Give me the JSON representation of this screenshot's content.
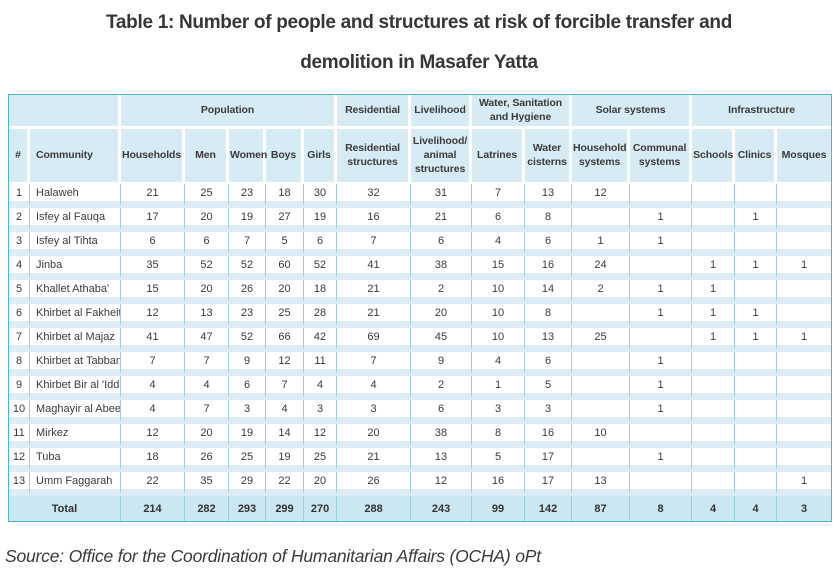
{
  "title": {
    "line1": "Table 1: Number of people and structures at risk of forcible transfer and",
    "line2": "demolition in Masafer Yatta"
  },
  "source": "Source: Office for the Coordination of Humanitarian Affairs (OCHA) oPt",
  "colors": {
    "table_border": "#4cb5cb",
    "header_bg": "#d6ebf4",
    "row_band": "#dcedf6",
    "total_row_bg": "#cbe7f2",
    "grid_line": "#9ccbdc",
    "text": "#3b3b3b"
  },
  "table": {
    "group_headers": [
      {
        "label": "",
        "colspan": 2
      },
      {
        "label": "Population",
        "colspan": 5
      },
      {
        "label": "Residential",
        "colspan": 1
      },
      {
        "label": "Livelihood",
        "colspan": 1
      },
      {
        "label": "Water, Sanitation and Hygiene",
        "colspan": 2
      },
      {
        "label": "Solar systems",
        "colspan": 2
      },
      {
        "label": "Infrastructure",
        "colspan": 3
      }
    ],
    "columns": [
      "#",
      "Community",
      "Households",
      "Men",
      "Women",
      "Boys",
      "Girls",
      "Residential structures",
      "Livelihood/ animal structures",
      "Latrines",
      "Water cisterns",
      "Household systems",
      "Communal systems",
      "Schools",
      "Clinics",
      "Mosques"
    ],
    "rows": [
      {
        "num": "1",
        "community": "Halaweh",
        "values": [
          "21",
          "25",
          "23",
          "18",
          "30",
          "32",
          "31",
          "7",
          "13",
          "12",
          "",
          "",
          "",
          ""
        ]
      },
      {
        "num": "2",
        "community": "Isfey al Fauqa",
        "values": [
          "17",
          "20",
          "19",
          "27",
          "19",
          "16",
          "21",
          "6",
          "8",
          "",
          "1",
          "",
          "1",
          ""
        ]
      },
      {
        "num": "3",
        "community": "Isfey al Tihta",
        "values": [
          "6",
          "6",
          "7",
          "5",
          "6",
          "7",
          "6",
          "4",
          "6",
          "1",
          "1",
          "",
          "",
          ""
        ]
      },
      {
        "num": "4",
        "community": "Jinba",
        "values": [
          "35",
          "52",
          "52",
          "60",
          "52",
          "41",
          "38",
          "15",
          "16",
          "24",
          "",
          "1",
          "1",
          "1"
        ]
      },
      {
        "num": "5",
        "community": "Khallet Athaba'",
        "values": [
          "15",
          "20",
          "26",
          "20",
          "18",
          "21",
          "2",
          "10",
          "14",
          "2",
          "1",
          "1",
          "",
          ""
        ]
      },
      {
        "num": "6",
        "community": "Khirbet al Fakheit",
        "values": [
          "12",
          "13",
          "23",
          "25",
          "28",
          "21",
          "20",
          "10",
          "8",
          "",
          "1",
          "1",
          "1",
          ""
        ]
      },
      {
        "num": "7",
        "community": "Khirbet al Majaz",
        "values": [
          "41",
          "47",
          "52",
          "66",
          "42",
          "69",
          "45",
          "10",
          "13",
          "25",
          "",
          "1",
          "1",
          "1"
        ]
      },
      {
        "num": "8",
        "community": "Khirbet at Tabban",
        "values": [
          "7",
          "7",
          "9",
          "12",
          "11",
          "7",
          "9",
          "4",
          "6",
          "",
          "1",
          "",
          "",
          ""
        ]
      },
      {
        "num": "9",
        "community": "Khirbet Bir al 'Idd",
        "values": [
          "4",
          "4",
          "6",
          "7",
          "4",
          "4",
          "2",
          "1",
          "5",
          "",
          "1",
          "",
          "",
          ""
        ]
      },
      {
        "num": "10",
        "community": "Maghayir al Abeed",
        "values": [
          "4",
          "7",
          "3",
          "4",
          "3",
          "3",
          "6",
          "3",
          "3",
          "",
          "1",
          "",
          "",
          ""
        ]
      },
      {
        "num": "11",
        "community": "Mirkez",
        "values": [
          "12",
          "20",
          "19",
          "14",
          "12",
          "20",
          "38",
          "8",
          "16",
          "10",
          "",
          "",
          "",
          ""
        ]
      },
      {
        "num": "12",
        "community": "Tuba",
        "values": [
          "18",
          "26",
          "25",
          "19",
          "25",
          "21",
          "13",
          "5",
          "17",
          "",
          "1",
          "",
          "",
          ""
        ]
      },
      {
        "num": "13",
        "community": "Umm Faggarah",
        "values": [
          "22",
          "35",
          "29",
          "22",
          "20",
          "26",
          "12",
          "16",
          "17",
          "13",
          "",
          "",
          "",
          "1"
        ]
      }
    ],
    "total": {
      "label": "Total",
      "values": [
        "214",
        "282",
        "293",
        "299",
        "270",
        "288",
        "243",
        "99",
        "142",
        "87",
        "8",
        "4",
        "4",
        "3"
      ]
    }
  }
}
